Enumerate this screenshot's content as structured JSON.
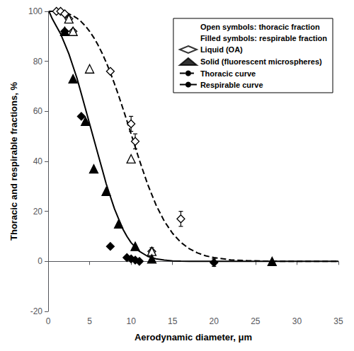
{
  "chart_data": {
    "type": "line",
    "xlabel": "Aerodynamic diameter, μm",
    "ylabel": "Thoracic and respirable fractions, %",
    "xlim": [
      0,
      35
    ],
    "ylim": [
      -20,
      100
    ],
    "xticks": [
      0,
      5,
      10,
      15,
      20,
      25,
      30,
      35
    ],
    "yticks": [
      -20,
      0,
      20,
      40,
      60,
      80,
      100
    ],
    "grid": false,
    "legend": "upper right",
    "legend_entries": [
      {
        "label": "Open symbols: thoracic fraction",
        "marker": "none"
      },
      {
        "label": "Filled symbols: respirable fraction",
        "marker": "none"
      },
      {
        "label": "Liquid (OA)",
        "marker": "open_diamond",
        "color": "black"
      },
      {
        "label": "Solid (fluorescent microspheres)",
        "marker": "filled_triangle",
        "color": "black"
      },
      {
        "label": "Thoracic curve",
        "line_style": "dashed",
        "color": "black"
      },
      {
        "label": "Respirable curve",
        "line_style": "solid",
        "color": "black"
      }
    ],
    "series": [
      {
        "type": "line",
        "line_style": "dashed",
        "color": "black",
        "x": [
          0.1,
          0.5,
          1,
          1.5,
          2,
          2.5,
          3,
          3.5,
          4,
          4.5,
          5,
          5.5,
          6,
          6.5,
          7,
          7.5,
          8,
          8.5,
          9,
          9.5,
          10,
          11,
          12,
          13,
          14,
          15,
          16,
          17,
          18,
          19,
          20,
          22,
          24,
          26,
          28,
          30,
          32,
          35
        ],
        "values": [
          100,
          100,
          100,
          99.8,
          99.5,
          99.0,
          98.2,
          97.2,
          95.8,
          94.1,
          92.0,
          89.5,
          86.6,
          83.3,
          79.6,
          75.5,
          71.0,
          66.3,
          61.3,
          56.2,
          51.0,
          40.5,
          30.8,
          22.6,
          16.1,
          11.2,
          7.6,
          5.1,
          3.4,
          2.2,
          1.5,
          0.6,
          0.3,
          0.1,
          0.05,
          0.02,
          0.01,
          0.0
        ]
      },
      {
        "type": "line",
        "line_style": "solid",
        "color": "black",
        "x": [
          0.1,
          0.5,
          1,
          1.5,
          2,
          2.5,
          3,
          3.5,
          4,
          4.5,
          5,
          5.5,
          6,
          6.5,
          7,
          7.5,
          8,
          8.5,
          9,
          9.5,
          10,
          11,
          12,
          13,
          14,
          15,
          16,
          17,
          18,
          19,
          20,
          22,
          24,
          26,
          28,
          30,
          32,
          35
        ],
        "values": [
          100,
          97,
          94,
          91,
          87,
          83,
          78,
          73,
          67,
          61,
          55,
          49,
          43,
          37,
          31,
          26,
          21,
          17,
          13,
          10,
          7.5,
          4.0,
          2.0,
          1.0,
          0.5,
          0.2,
          0.1,
          0.05,
          0.02,
          0.01,
          0.0,
          0.0,
          0.0,
          0.0,
          0.0,
          0.0,
          0.0,
          0.0
        ]
      },
      {
        "type": "scatter",
        "marker": "open_diamond",
        "color": "black",
        "x": [
          1.0,
          1.5,
          2.0,
          2.5,
          3.0,
          7.5,
          10.0,
          10.5,
          12.5,
          16.0
        ],
        "values": [
          100,
          100,
          99,
          97,
          92,
          76,
          55,
          48,
          4,
          17
        ],
        "yerr": [
          0,
          0,
          0,
          0,
          0,
          0,
          3,
          3,
          1.5,
          3
        ]
      },
      {
        "type": "scatter",
        "marker": "filled_diamond",
        "color": "black",
        "x": [
          2.0,
          4.0,
          7.5,
          9.5,
          10.0,
          10.5,
          11.0,
          20.0
        ],
        "values": [
          92,
          58,
          6,
          1.5,
          1.0,
          0.5,
          0.0,
          -0.5
        ],
        "yerr": [
          0,
          0,
          0,
          0,
          0,
          0,
          0,
          1.5
        ]
      },
      {
        "type": "scatter",
        "marker": "open_triangle",
        "color": "black",
        "x": [
          2.5,
          3.0,
          5.0,
          10.0,
          12.5
        ],
        "values": [
          97,
          92,
          77,
          41,
          4
        ]
      },
      {
        "type": "scatter",
        "marker": "filled_triangle",
        "color": "black",
        "x": [
          2.0,
          3.0,
          4.5,
          5.5,
          7.0,
          8.5,
          10.5,
          12.5,
          27.0
        ],
        "values": [
          92,
          73,
          56,
          37,
          28,
          15,
          6,
          1,
          0
        ]
      }
    ]
  }
}
